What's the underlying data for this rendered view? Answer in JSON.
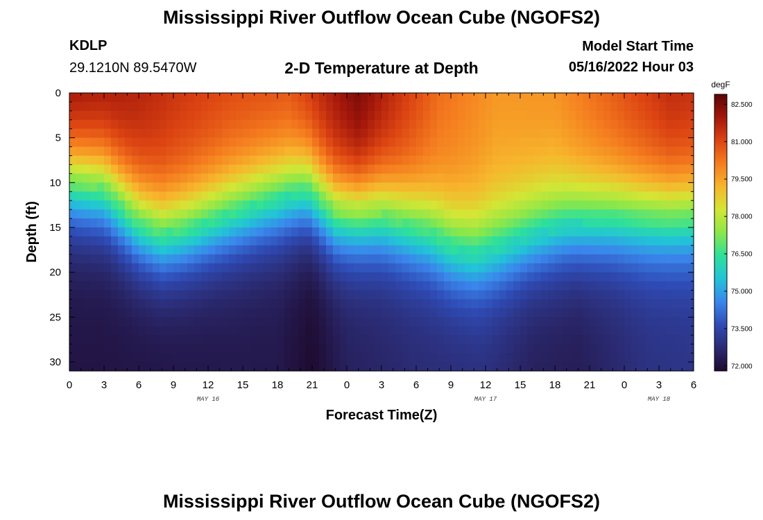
{
  "header": {
    "title": "Mississippi River Outflow Ocean Cube (NGOFS2)",
    "station": "KDLP",
    "coordinates": "29.1210N  89.5470W",
    "subtitle": "2-D Temperature at Depth",
    "model_start_label": "Model Start Time",
    "model_start_value": "05/16/2022 Hour 03"
  },
  "footer": {
    "title": "Mississippi River Outflow Ocean Cube (NGOFS2)"
  },
  "chart_data": {
    "type": "heatmap",
    "xlabel": "Forecast Time(Z)",
    "ylabel": "Depth (ft)",
    "xlim": [
      0,
      54
    ],
    "ylim": [
      31,
      0
    ],
    "x_tick_labels": [
      "0",
      "3",
      "6",
      "9",
      "12",
      "15",
      "18",
      "21",
      "0",
      "3",
      "6",
      "9",
      "12",
      "15",
      "18",
      "21",
      "0",
      "3",
      "6"
    ],
    "y_ticks": [
      0,
      5,
      10,
      15,
      20,
      25,
      30
    ],
    "date_labels": [
      {
        "text": "MAY 16",
        "x": 12
      },
      {
        "text": "MAY 17",
        "x": 36
      },
      {
        "text": "MAY 18",
        "x": 51
      }
    ],
    "colorbar": {
      "unit": "degF",
      "min": 71.8,
      "max": 82.9,
      "ticks": [
        "72.000",
        "73.500",
        "75.000",
        "76.500",
        "78.000",
        "79.500",
        "81.000",
        "82.500"
      ],
      "tick_values": [
        72.0,
        73.5,
        75.0,
        76.5,
        78.0,
        79.5,
        81.0,
        82.5
      ],
      "colors": [
        "#1e0a2e",
        "#2b2b73",
        "#2f4bb5",
        "#3a86ec",
        "#22c3d8",
        "#2ee09a",
        "#8be74a",
        "#d3e635",
        "#f7b52c",
        "#f57d1f",
        "#dc4412",
        "#a4170b",
        "#5a0606"
      ]
    },
    "thermocline_depth_ft": [
      {
        "x": 0,
        "depth": 10.0
      },
      {
        "x": 3,
        "depth": 10.7
      },
      {
        "x": 6,
        "depth": 14.5
      },
      {
        "x": 8,
        "depth": 15.8
      },
      {
        "x": 10,
        "depth": 15.3
      },
      {
        "x": 14,
        "depth": 13.5
      },
      {
        "x": 17,
        "depth": 12.2
      },
      {
        "x": 19,
        "depth": 11.5
      },
      {
        "x": 20.5,
        "depth": 11.0
      },
      {
        "x": 23,
        "depth": 13.5
      },
      {
        "x": 27,
        "depth": 13.5
      },
      {
        "x": 31,
        "depth": 15.5
      },
      {
        "x": 33,
        "depth": 17.2
      },
      {
        "x": 35,
        "depth": 18.0
      },
      {
        "x": 37,
        "depth": 17.4
      },
      {
        "x": 40,
        "depth": 16.0
      },
      {
        "x": 43,
        "depth": 14.8
      },
      {
        "x": 47,
        "depth": 14.0
      },
      {
        "x": 51,
        "depth": 13.8
      },
      {
        "x": 54,
        "depth": 13.6
      }
    ],
    "surface_temperature_degF": [
      {
        "x": 0,
        "value": 82.3
      },
      {
        "x": 4,
        "value": 82.0
      },
      {
        "x": 9,
        "value": 81.4
      },
      {
        "x": 14,
        "value": 81.0
      },
      {
        "x": 19,
        "value": 80.9
      },
      {
        "x": 22,
        "value": 81.8
      },
      {
        "x": 25,
        "value": 82.6
      },
      {
        "x": 28,
        "value": 81.6
      },
      {
        "x": 32,
        "value": 80.4
      },
      {
        "x": 37,
        "value": 79.7
      },
      {
        "x": 42,
        "value": 79.8
      },
      {
        "x": 47,
        "value": 80.7
      },
      {
        "x": 52,
        "value": 81.6
      },
      {
        "x": 54,
        "value": 81.5
      }
    ],
    "bottom_temperature_degF": [
      {
        "x": 0,
        "value": 72.1
      },
      {
        "x": 8,
        "value": 72.1
      },
      {
        "x": 14,
        "value": 72.2
      },
      {
        "x": 18,
        "value": 72.2
      },
      {
        "x": 21,
        "value": 71.8
      },
      {
        "x": 24,
        "value": 72.4
      },
      {
        "x": 30,
        "value": 72.7
      },
      {
        "x": 36,
        "value": 72.8
      },
      {
        "x": 40,
        "value": 72.4
      },
      {
        "x": 44,
        "value": 72.3
      },
      {
        "x": 50,
        "value": 72.9
      },
      {
        "x": 54,
        "value": 73.0
      }
    ]
  }
}
